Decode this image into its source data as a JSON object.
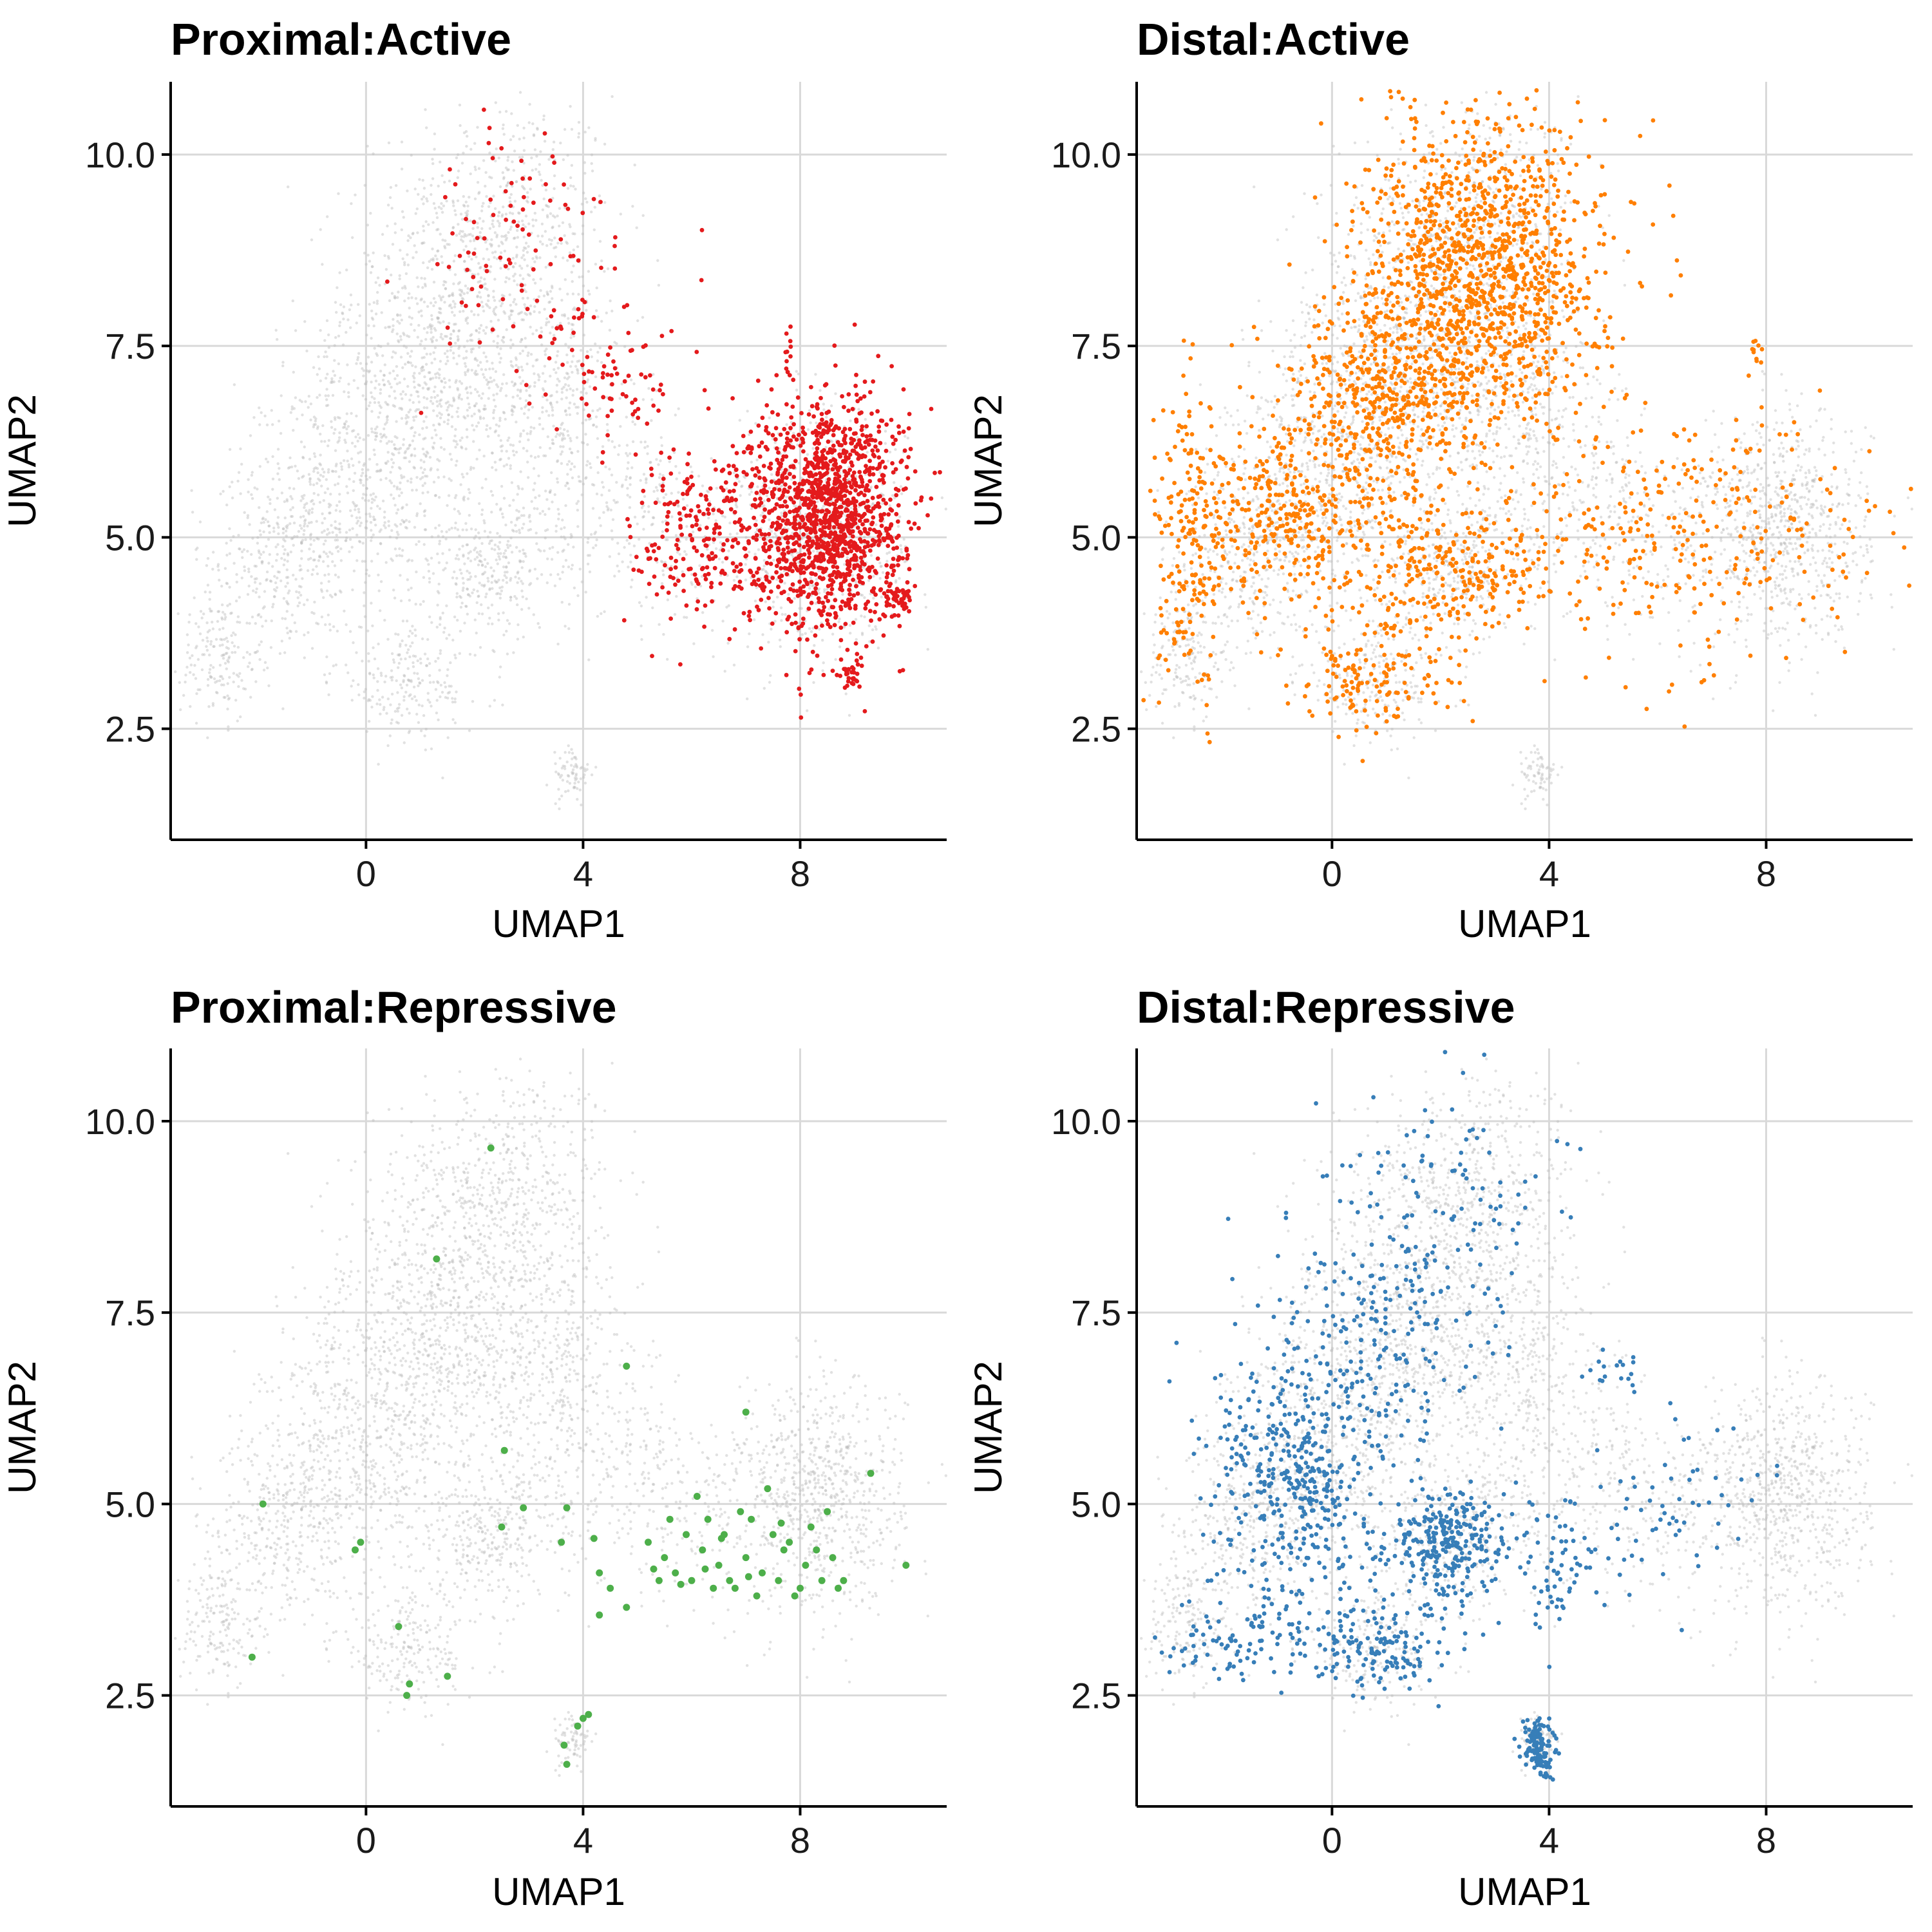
{
  "chart_data": [
    {
      "type": "scatter",
      "title": "Proximal:Active",
      "xlabel": "UMAP1",
      "ylabel": "UMAP2",
      "xlim": [
        -3.6,
        10.7
      ],
      "ylim": [
        1.05,
        10.95
      ],
      "x_ticks": [
        0,
        4,
        8
      ],
      "y_ticks": [
        2.5,
        5.0,
        7.5,
        10.0
      ],
      "x_tick_labels": [
        "0",
        "4",
        "8"
      ],
      "y_tick_labels": [
        "2.5",
        "5.0",
        "7.5",
        "10.0"
      ],
      "grid": true,
      "legend": "none",
      "background_color": "#bdbdbd",
      "highlight_color": "#e41a1c",
      "highlight_regions": [
        {
          "x": 8.5,
          "y": 5.3,
          "sx": 0.7,
          "sy": 0.75,
          "n": 1400
        },
        {
          "x": 9.8,
          "y": 4.2,
          "sx": 0.12,
          "sy": 0.12,
          "n": 40
        },
        {
          "x": 8.9,
          "y": 3.2,
          "sx": 0.1,
          "sy": 0.08,
          "n": 30
        },
        {
          "x": 7.8,
          "y": 7.35,
          "sx": 0.05,
          "sy": 0.3,
          "n": 12
        },
        {
          "x": 6.3,
          "y": 5.0,
          "sx": 0.7,
          "sy": 0.6,
          "n": 220
        },
        {
          "x": 4.8,
          "y": 7.0,
          "sx": 0.5,
          "sy": 0.4,
          "n": 60
        },
        {
          "x": 3.0,
          "y": 8.5,
          "sx": 1.0,
          "sy": 1.0,
          "n": 110
        }
      ]
    },
    {
      "type": "scatter",
      "title": "Distal:Active",
      "xlabel": "UMAP1",
      "ylabel": "UMAP2",
      "xlim": [
        -3.6,
        10.7
      ],
      "ylim": [
        1.05,
        10.95
      ],
      "x_ticks": [
        0,
        4,
        8
      ],
      "y_ticks": [
        2.5,
        5.0,
        7.5,
        10.0
      ],
      "x_tick_labels": [
        "0",
        "4",
        "8"
      ],
      "y_tick_labels": [
        "2.5",
        "5.0",
        "7.5",
        "10.0"
      ],
      "grid": true,
      "legend": "none",
      "background_color": "#bdbdbd",
      "highlight_color": "#ff7f00",
      "highlight_regions": [
        {
          "x": 2.8,
          "y": 8.5,
          "sx": 1.1,
          "sy": 1.0,
          "n": 1300
        },
        {
          "x": 1.0,
          "y": 6.8,
          "sx": 0.9,
          "sy": 0.7,
          "n": 500
        },
        {
          "x": -0.8,
          "y": 5.2,
          "sx": 0.9,
          "sy": 0.6,
          "n": 350
        },
        {
          "x": -2.6,
          "y": 4.8,
          "sx": 0.3,
          "sy": 1.0,
          "n": 180
        },
        {
          "x": 2.2,
          "y": 4.6,
          "sx": 0.9,
          "sy": 0.4,
          "n": 260
        },
        {
          "x": 0.8,
          "y": 3.2,
          "sx": 0.8,
          "sy": 0.4,
          "n": 150
        },
        {
          "x": 6.5,
          "y": 5.0,
          "sx": 1.8,
          "sy": 0.8,
          "n": 320
        },
        {
          "x": 7.8,
          "y": 7.5,
          "sx": 0.05,
          "sy": 0.15,
          "n": 10
        }
      ]
    },
    {
      "type": "scatter",
      "title": "Proximal:Repressive",
      "xlabel": "UMAP1",
      "ylabel": "UMAP2",
      "xlim": [
        -3.6,
        10.7
      ],
      "ylim": [
        1.05,
        10.95
      ],
      "x_ticks": [
        0,
        4,
        8
      ],
      "y_ticks": [
        2.5,
        5.0,
        7.5,
        10.0
      ],
      "x_tick_labels": [
        "0",
        "4",
        "8"
      ],
      "y_tick_labels": [
        "2.5",
        "5.0",
        "7.5",
        "10.0"
      ],
      "grid": true,
      "legend": "none",
      "background_color": "#bdbdbd",
      "highlight_color": "#4daf4a",
      "highlight_points": [
        [
          2.3,
          9.65
        ],
        [
          1.3,
          8.2
        ],
        [
          4.8,
          6.8
        ],
        [
          2.55,
          5.7
        ],
        [
          7.0,
          6.2
        ],
        [
          9.3,
          5.4
        ],
        [
          -1.9,
          5.0
        ],
        [
          -0.1,
          4.5
        ],
        [
          -0.2,
          4.4
        ],
        [
          2.5,
          4.7
        ],
        [
          2.9,
          4.95
        ],
        [
          3.7,
          4.95
        ],
        [
          3.6,
          4.5
        ],
        [
          4.2,
          4.55
        ],
        [
          4.3,
          4.1
        ],
        [
          4.5,
          3.9
        ],
        [
          4.8,
          3.65
        ],
        [
          4.3,
          3.55
        ],
        [
          -2.1,
          3.0
        ],
        [
          0.6,
          3.4
        ],
        [
          0.8,
          2.65
        ],
        [
          0.75,
          2.5
        ],
        [
          1.5,
          2.75
        ],
        [
          4.0,
          2.2
        ],
        [
          4.1,
          2.25
        ],
        [
          3.9,
          2.1
        ],
        [
          3.65,
          1.85
        ],
        [
          3.7,
          1.6
        ],
        [
          9.95,
          4.2
        ],
        [
          5.5,
          4.3
        ],
        [
          5.7,
          4.1
        ],
        [
          5.9,
          4.6
        ],
        [
          6.0,
          4.0
        ],
        [
          6.2,
          4.4
        ],
        [
          6.3,
          4.8
        ],
        [
          6.5,
          4.2
        ],
        [
          6.6,
          4.6
        ],
        [
          6.8,
          3.9
        ],
        [
          7.0,
          4.3
        ],
        [
          7.1,
          4.8
        ],
        [
          7.3,
          4.1
        ],
        [
          7.4,
          5.2
        ],
        [
          7.6,
          4.0
        ],
        [
          7.8,
          4.5
        ],
        [
          8.0,
          3.9
        ],
        [
          8.1,
          4.2
        ],
        [
          8.2,
          4.7
        ],
        [
          8.4,
          4.0
        ],
        [
          8.6,
          4.3
        ],
        [
          8.7,
          3.9
        ],
        [
          5.4,
          4.0
        ],
        [
          5.6,
          4.8
        ],
        [
          6.1,
          5.1
        ],
        [
          6.4,
          3.9
        ],
        [
          6.9,
          4.9
        ],
        [
          7.2,
          3.8
        ],
        [
          7.7,
          4.4
        ],
        [
          8.3,
          4.4
        ],
        [
          5.2,
          4.5
        ],
        [
          6.7,
          4.0
        ],
        [
          7.5,
          4.6
        ],
        [
          5.8,
          3.95
        ],
        [
          6.25,
          4.15
        ],
        [
          7.9,
          3.8
        ],
        [
          8.5,
          4.9
        ],
        [
          8.8,
          4.0
        ],
        [
          5.3,
          4.15
        ],
        [
          6.55,
          4.55
        ],
        [
          7.05,
          4.05
        ],
        [
          7.65,
          4.75
        ]
      ]
    },
    {
      "type": "scatter",
      "title": "Distal:Repressive",
      "xlabel": "UMAP1",
      "ylabel": "UMAP2",
      "xlim": [
        -3.6,
        10.7
      ],
      "ylim": [
        1.05,
        10.95
      ],
      "x_ticks": [
        0,
        4,
        8
      ],
      "y_ticks": [
        2.5,
        5.0,
        7.5,
        10.0
      ],
      "x_tick_labels": [
        "0",
        "4",
        "8"
      ],
      "y_tick_labels": [
        "2.5",
        "5.0",
        "7.5",
        "10.0"
      ],
      "grid": true,
      "legend": "none",
      "background_color": "#bdbdbd",
      "highlight_color": "#377eb8",
      "highlight_regions": [
        {
          "x": -0.6,
          "y": 5.3,
          "sx": 0.8,
          "sy": 0.9,
          "n": 450
        },
        {
          "x": 0.9,
          "y": 7.3,
          "sx": 0.9,
          "sy": 1.0,
          "n": 220
        },
        {
          "x": 2.3,
          "y": 9.0,
          "sx": 0.9,
          "sy": 0.9,
          "n": 90
        },
        {
          "x": 2.2,
          "y": 4.5,
          "sx": 0.55,
          "sy": 0.35,
          "n": 280
        },
        {
          "x": 0.8,
          "y": 3.1,
          "sx": 0.7,
          "sy": 0.3,
          "n": 160
        },
        {
          "x": -2.0,
          "y": 3.2,
          "sx": 0.8,
          "sy": 0.25,
          "n": 80
        },
        {
          "x": 3.8,
          "y": 1.8,
          "sx": 0.15,
          "sy": 0.18,
          "n": 130
        },
        {
          "x": 4.2,
          "y": 4.2,
          "sx": 0.4,
          "sy": 0.5,
          "n": 60
        },
        {
          "x": 5.5,
          "y": 4.6,
          "sx": 0.8,
          "sy": 0.4,
          "n": 45
        },
        {
          "x": 5.2,
          "y": 6.8,
          "sx": 0.3,
          "sy": 0.15,
          "n": 18
        },
        {
          "x": 7.0,
          "y": 5.0,
          "sx": 0.7,
          "sy": 0.6,
          "n": 25
        }
      ]
    }
  ]
}
